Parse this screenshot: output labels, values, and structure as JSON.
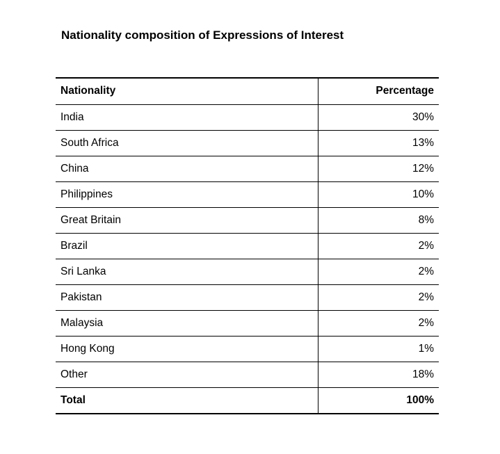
{
  "title": "Nationality composition of Expressions of Interest",
  "table": {
    "headers": [
      "Nationality",
      "Percentage"
    ],
    "rows": [
      {
        "nationality": "India",
        "percentage": "30%"
      },
      {
        "nationality": "South Africa",
        "percentage": "13%"
      },
      {
        "nationality": "China",
        "percentage": "12%"
      },
      {
        "nationality": "Philippines",
        "percentage": "10%"
      },
      {
        "nationality": "Great Britain",
        "percentage": "8%"
      },
      {
        "nationality": "Brazil",
        "percentage": "2%"
      },
      {
        "nationality": "Sri Lanka",
        "percentage": "2%"
      },
      {
        "nationality": "Pakistan",
        "percentage": "2%"
      },
      {
        "nationality": "Malaysia",
        "percentage": "2%"
      },
      {
        "nationality": "Hong Kong",
        "percentage": "1%"
      },
      {
        "nationality": "Other",
        "percentage": "18%"
      }
    ],
    "total": {
      "label": "Total",
      "percentage": "100%"
    }
  }
}
